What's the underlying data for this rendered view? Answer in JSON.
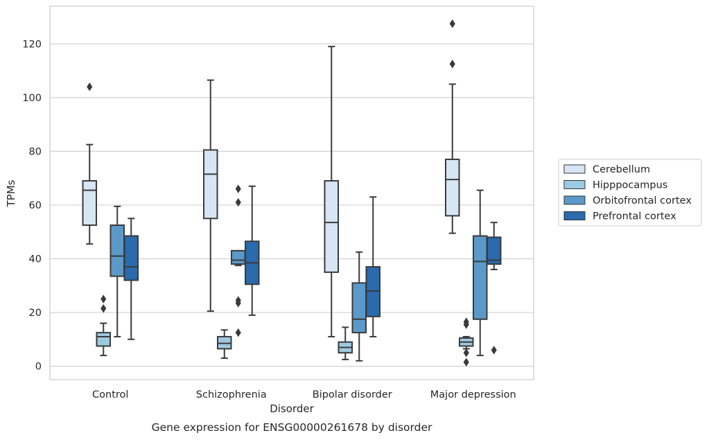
{
  "chart_data": {
    "type": "box",
    "caption": "Gene expression for ENSG00000261678 by disorder",
    "xlabel": "Disorder",
    "ylabel": "TPMs",
    "ylim": [
      -5,
      134
    ],
    "yticks": [
      0,
      20,
      40,
      60,
      80,
      100,
      120
    ],
    "grid": true,
    "legend_position": "right",
    "categories": [
      "Control",
      "Schizophrenia",
      "Bipolar disorder",
      "Major depression"
    ],
    "series": [
      {
        "name": "Cerebellum",
        "color": "#d6e6f4",
        "boxes": [
          {
            "whisker_low": 45.5,
            "q1": 52.5,
            "median": 65.5,
            "q3": 69,
            "whisker_high": 82.5,
            "outliers": [
              104
            ]
          },
          {
            "whisker_low": 20.5,
            "q1": 55,
            "median": 71.5,
            "q3": 80.5,
            "whisker_high": 106.5,
            "outliers": []
          },
          {
            "whisker_low": 11,
            "q1": 35,
            "median": 53.5,
            "q3": 69,
            "whisker_high": 119,
            "outliers": []
          },
          {
            "whisker_low": 49.5,
            "q1": 56,
            "median": 69.5,
            "q3": 77,
            "whisker_high": 105,
            "outliers": [
              112.5,
              127.5
            ]
          }
        ]
      },
      {
        "name": "Hipppocampus",
        "color": "#9ecae1",
        "boxes": [
          {
            "whisker_low": 4,
            "q1": 7.5,
            "median": 11,
            "q3": 12.5,
            "whisker_high": 16,
            "outliers": [
              21.5,
              25
            ]
          },
          {
            "whisker_low": 3,
            "q1": 6.5,
            "median": 8.5,
            "q3": 11,
            "whisker_high": 13.5,
            "outliers": []
          },
          {
            "whisker_low": 2.5,
            "q1": 5,
            "median": 7,
            "q3": 9,
            "whisker_high": 14.5,
            "outliers": []
          },
          {
            "whisker_low": 6.5,
            "q1": 7.5,
            "median": 9,
            "q3": 10.5,
            "whisker_high": 11,
            "outliers": [
              5,
              1.5,
              15.5,
              16.5
            ]
          }
        ]
      },
      {
        "name": "Orbitofrontal cortex",
        "color": "#5b9ac8",
        "boxes": [
          {
            "whisker_low": 11,
            "q1": 33.5,
            "median": 41,
            "q3": 52.5,
            "whisker_high": 59.5,
            "outliers": []
          },
          {
            "whisker_low": 37.5,
            "q1": 38,
            "median": 39.5,
            "q3": 43,
            "whisker_high": 43,
            "outliers": [
              12.5,
              23.5,
              24.5,
              61,
              66
            ]
          },
          {
            "whisker_low": 2,
            "q1": 12.5,
            "median": 17.5,
            "q3": 31,
            "whisker_high": 42.5,
            "outliers": []
          },
          {
            "whisker_low": 4,
            "q1": 17.5,
            "median": 39,
            "q3": 48.5,
            "whisker_high": 65.5,
            "outliers": []
          }
        ]
      },
      {
        "name": "Prefrontal cortex",
        "color": "#2a6aad",
        "boxes": [
          {
            "whisker_low": 10,
            "q1": 32,
            "median": 37,
            "q3": 48.5,
            "whisker_high": 55,
            "outliers": []
          },
          {
            "whisker_low": 19,
            "q1": 30.5,
            "median": 38.5,
            "q3": 46.5,
            "whisker_high": 67,
            "outliers": []
          },
          {
            "whisker_low": 11,
            "q1": 18.5,
            "median": 28,
            "q3": 37,
            "whisker_high": 63,
            "outliers": []
          },
          {
            "whisker_low": 36,
            "q1": 38,
            "median": 39.5,
            "q3": 48,
            "whisker_high": 53.5,
            "outliers": [
              6
            ]
          }
        ]
      }
    ]
  }
}
